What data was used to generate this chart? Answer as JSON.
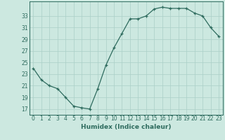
{
  "x": [
    0,
    1,
    2,
    3,
    4,
    5,
    6,
    7,
    8,
    9,
    10,
    11,
    12,
    13,
    14,
    15,
    16,
    17,
    18,
    19,
    20,
    21,
    22,
    23
  ],
  "y": [
    24,
    22,
    21,
    20.5,
    19,
    17.5,
    17.2,
    17,
    20.5,
    24.5,
    27.5,
    30,
    32.5,
    32.5,
    33,
    34.2,
    34.5,
    34.3,
    34.3,
    34.3,
    33.5,
    33,
    31,
    29.5
  ],
  "xlabel": "Humidex (Indice chaleur)",
  "xlim": [
    -0.5,
    23.5
  ],
  "ylim": [
    16,
    35.5
  ],
  "yticks": [
    17,
    19,
    21,
    23,
    25,
    27,
    29,
    31,
    33
  ],
  "xticks": [
    0,
    1,
    2,
    3,
    4,
    5,
    6,
    7,
    8,
    9,
    10,
    11,
    12,
    13,
    14,
    15,
    16,
    17,
    18,
    19,
    20,
    21,
    22,
    23
  ],
  "line_color": "#2e6b5e",
  "marker": "+",
  "bg_color": "#cce8e0",
  "grid_color": "#aacfc7",
  "tick_fontsize": 5.5,
  "label_fontsize": 6.5
}
